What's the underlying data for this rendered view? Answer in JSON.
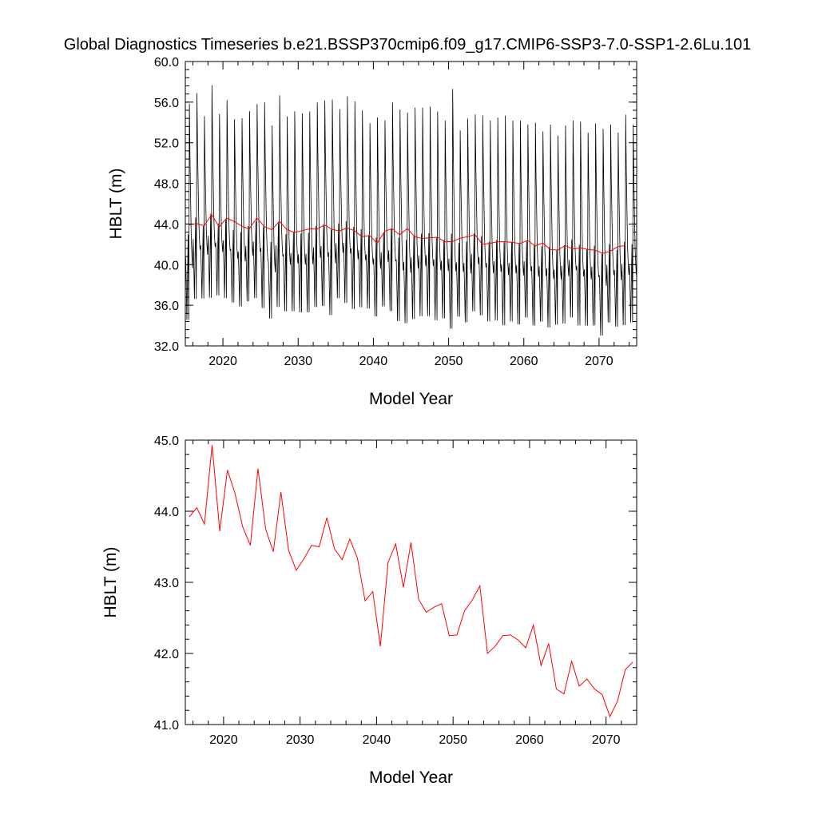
{
  "figure": {
    "title": "Global Diagnostics Timeseries b.e21.BSSP370cmip6.f09_g17.CMIP6-SSP3-7.0-SSP1-2.6Lu.101"
  },
  "chart_data": [
    {
      "type": "line",
      "xlabel": "Model Year",
      "ylabel": "HBLT (m)",
      "xlim": [
        2015,
        2075
      ],
      "ylim": [
        32.0,
        60.0
      ],
      "xticks": [
        2020,
        2030,
        2040,
        2050,
        2060,
        2070
      ],
      "yticks": [
        32.0,
        36.0,
        40.0,
        44.0,
        48.0,
        52.0,
        56.0,
        60.0
      ],
      "xtick_labels": [
        "2020",
        "2030",
        "2040",
        "2050",
        "2060",
        "2070"
      ],
      "ytick_labels": [
        "32.0",
        "36.0",
        "40.0",
        "44.0",
        "48.0",
        "52.0",
        "56.0",
        "60.0"
      ],
      "grid": false,
      "series": [
        {
          "color": "#000000",
          "kind": "monthly",
          "start_year": 2015,
          "years": [
            2015,
            2016,
            2017,
            2018,
            2019,
            2020,
            2021,
            2022,
            2023,
            2024,
            2025,
            2026,
            2027,
            2028,
            2029,
            2030,
            2031,
            2032,
            2033,
            2034,
            2035,
            2036,
            2037,
            2038,
            2039,
            2040,
            2041,
            2042,
            2043,
            2044,
            2045,
            2046,
            2047,
            2048,
            2049,
            2050,
            2051,
            2052,
            2053,
            2054,
            2055,
            2056,
            2057,
            2058,
            2059,
            2060,
            2061,
            2062,
            2063,
            2064,
            2065,
            2066,
            2067,
            2068,
            2069,
            2070,
            2071,
            2072,
            2073,
            2074
          ],
          "annual_max": [
            56.3,
            57.3,
            55.0,
            58.1,
            55.2,
            56.6,
            54.7,
            54.8,
            55.5,
            56.2,
            56.4,
            54.1,
            57.1,
            55.0,
            55.5,
            55.3,
            55.5,
            56.4,
            56.6,
            56.7,
            55.7,
            57.0,
            56.5,
            55.6,
            54.3,
            54.9,
            54.6,
            56.4,
            55.7,
            55.4,
            55.9,
            55.9,
            56.0,
            55.5,
            54.6,
            57.8,
            53.6,
            54.8,
            55.2,
            55.1,
            54.6,
            54.9,
            55.1,
            54.6,
            54.6,
            54.2,
            54.4,
            53.5,
            54.2,
            53.1,
            54.1,
            54.6,
            54.5,
            53.4,
            54.3,
            53.8,
            54.2,
            53.4,
            55.2,
            54.2
          ],
          "annual_min": [
            34.1,
            36.2,
            36.3,
            36.3,
            36.6,
            36.3,
            35.9,
            35.5,
            36.0,
            36.3,
            35.3,
            34.3,
            35.4,
            35.0,
            35.0,
            34.9,
            34.9,
            35.4,
            35.5,
            34.6,
            36.3,
            35.8,
            35.2,
            35.4,
            35.3,
            34.5,
            35.5,
            35.0,
            34.0,
            33.8,
            34.2,
            34.5,
            34.5,
            34.1,
            34.3,
            33.2,
            34.5,
            33.9,
            35.0,
            34.6,
            34.0,
            34.1,
            33.6,
            34.0,
            33.7,
            34.4,
            33.6,
            34.0,
            33.4,
            33.7,
            33.8,
            34.4,
            33.6,
            33.6,
            33.6,
            32.6,
            33.9,
            33.5,
            33.6,
            33.9
          ]
        },
        {
          "color": "#ff0000",
          "kind": "annual_mean",
          "x": [
            2015.5,
            2016.5,
            2017.5,
            2018.5,
            2019.5,
            2020.5,
            2021.5,
            2022.5,
            2023.5,
            2024.5,
            2025.5,
            2026.5,
            2027.5,
            2028.5,
            2029.5,
            2030.5,
            2031.5,
            2032.5,
            2033.5,
            2034.5,
            2035.5,
            2036.5,
            2037.5,
            2038.5,
            2039.5,
            2040.5,
            2041.5,
            2042.5,
            2043.5,
            2044.5,
            2045.5,
            2046.5,
            2047.5,
            2048.5,
            2049.5,
            2050.5,
            2051.5,
            2052.5,
            2053.5,
            2054.5,
            2055.5,
            2056.5,
            2057.5,
            2058.5,
            2059.5,
            2060.5,
            2061.5,
            2062.5,
            2063.5,
            2064.5,
            2065.5,
            2066.5,
            2067.5,
            2068.5,
            2069.5,
            2070.5,
            2071.5,
            2072.5,
            2073.5
          ],
          "y": [
            43.92,
            44.05,
            43.82,
            44.93,
            43.72,
            44.58,
            44.25,
            43.78,
            43.52,
            44.6,
            43.75,
            43.43,
            44.27,
            43.45,
            43.17,
            43.33,
            43.52,
            43.5,
            43.91,
            43.47,
            43.32,
            43.61,
            43.34,
            42.74,
            42.87,
            42.1,
            43.28,
            43.54,
            42.93,
            43.56,
            42.76,
            42.58,
            42.65,
            42.7,
            42.25,
            42.26,
            42.6,
            42.75,
            42.95,
            42.0,
            42.1,
            42.25,
            42.26,
            42.19,
            42.08,
            42.4,
            41.83,
            42.14,
            41.5,
            41.43,
            41.89,
            41.54,
            41.64,
            41.5,
            41.42,
            41.11,
            41.33,
            41.77,
            41.88
          ]
        }
      ]
    },
    {
      "type": "line",
      "xlabel": "Model Year",
      "ylabel": "HBLT (m)",
      "xlim": [
        2015,
        2074
      ],
      "ylim": [
        41.0,
        45.0
      ],
      "xticks": [
        2020,
        2030,
        2040,
        2050,
        2060,
        2070
      ],
      "yticks": [
        41.0,
        42.0,
        43.0,
        44.0,
        45.0
      ],
      "xtick_labels": [
        "2020",
        "2030",
        "2040",
        "2050",
        "2060",
        "2070"
      ],
      "ytick_labels": [
        "41.0",
        "42.0",
        "43.0",
        "44.0",
        "45.0"
      ],
      "grid": false,
      "series": [
        {
          "color": "#ff0000",
          "kind": "annual_mean",
          "x": [
            2015.5,
            2016.5,
            2017.5,
            2018.5,
            2019.5,
            2020.5,
            2021.5,
            2022.5,
            2023.5,
            2024.5,
            2025.5,
            2026.5,
            2027.5,
            2028.5,
            2029.5,
            2030.5,
            2031.5,
            2032.5,
            2033.5,
            2034.5,
            2035.5,
            2036.5,
            2037.5,
            2038.5,
            2039.5,
            2040.5,
            2041.5,
            2042.5,
            2043.5,
            2044.5,
            2045.5,
            2046.5,
            2047.5,
            2048.5,
            2049.5,
            2050.5,
            2051.5,
            2052.5,
            2053.5,
            2054.5,
            2055.5,
            2056.5,
            2057.5,
            2058.5,
            2059.5,
            2060.5,
            2061.5,
            2062.5,
            2063.5,
            2064.5,
            2065.5,
            2066.5,
            2067.5,
            2068.5,
            2069.5,
            2070.5,
            2071.5,
            2072.5,
            2073.5
          ],
          "y": [
            43.92,
            44.05,
            43.82,
            44.93,
            43.72,
            44.58,
            44.25,
            43.78,
            43.52,
            44.6,
            43.75,
            43.43,
            44.27,
            43.45,
            43.17,
            43.33,
            43.52,
            43.5,
            43.91,
            43.47,
            43.32,
            43.61,
            43.34,
            42.74,
            42.87,
            42.1,
            43.28,
            43.54,
            42.93,
            43.56,
            42.76,
            42.58,
            42.65,
            42.7,
            42.25,
            42.26,
            42.6,
            42.75,
            42.95,
            42.0,
            42.1,
            42.25,
            42.26,
            42.19,
            42.08,
            42.4,
            41.83,
            42.14,
            41.5,
            41.43,
            41.89,
            41.54,
            41.64,
            41.5,
            41.42,
            41.11,
            41.33,
            41.77,
            41.88
          ]
        }
      ]
    }
  ]
}
